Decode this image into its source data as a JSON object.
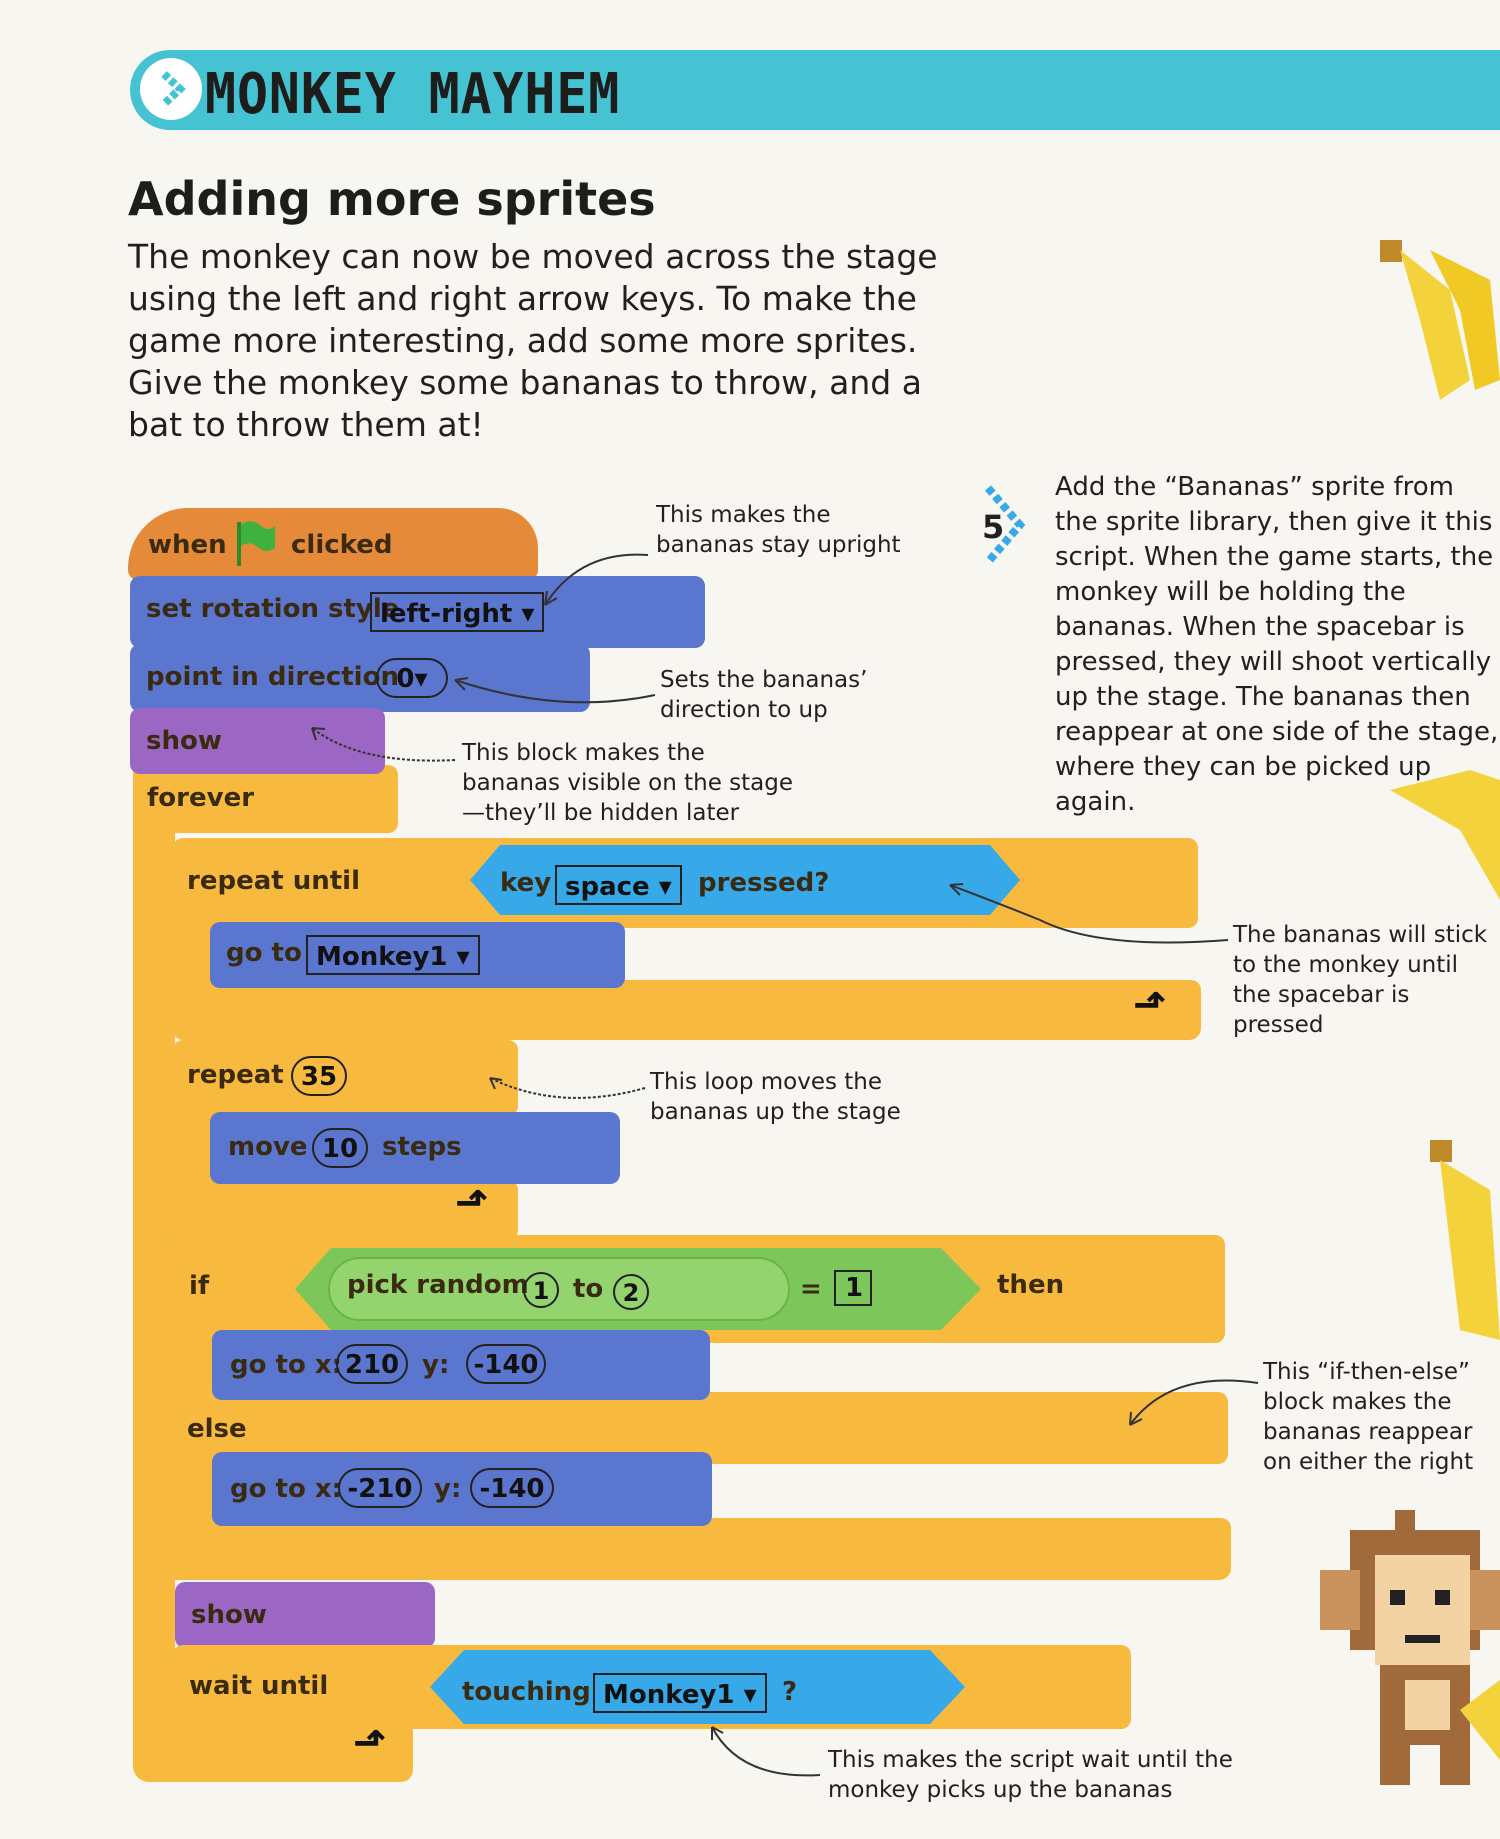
{
  "header": {
    "title": "MONKEY MAYHEM"
  },
  "section": {
    "subtitle": "Adding more sprites",
    "intro": "The monkey can now be moved across the stage using the left and right arrow keys. To make the game more interesting, add some more sprites. Give the monkey some bananas to throw, and a bat to throw them at!"
  },
  "step": {
    "number": "5",
    "text": "Add the “Bananas” sprite from the sprite library, then give it this script. When the game starts, the monkey will be holding the bananas. When the spacebar is pressed, they will shoot vertically up the stage. The bananas then reappear at one side of the stage, where they can be picked up again."
  },
  "script": {
    "when_flag": {
      "when": "when",
      "clicked": "clicked"
    },
    "set_rotation": {
      "label": "set rotation style",
      "value": "left-right"
    },
    "point_dir": {
      "label": "point in direction",
      "value": "0"
    },
    "show1": "show",
    "forever": "forever",
    "repeat_until": {
      "label": "repeat until",
      "key": "key",
      "key_value": "space",
      "pressed": "pressed?"
    },
    "goto_monkey": {
      "label": "go to",
      "value": "Monkey1"
    },
    "repeat": {
      "label": "repeat",
      "count": "35"
    },
    "move": {
      "label": "move",
      "value": "10",
      "steps": "steps"
    },
    "if_block": {
      "if": "if",
      "pick": "pick random",
      "from": "1",
      "to": "to",
      "to_value": "2",
      "eq": "=",
      "eq_value": "1",
      "then": "then"
    },
    "goto_xy1": {
      "label": "go to x:",
      "x": "210",
      "y_label": "y:",
      "y": "-140"
    },
    "else": "else",
    "goto_xy2": {
      "label": "go to x:",
      "x": "-210",
      "y_label": "y:",
      "y": "-140"
    },
    "show2": "show",
    "wait_until": {
      "label": "wait until",
      "touching": "touching",
      "value": "Monkey1",
      "q": "?"
    }
  },
  "annotations": {
    "upright": "This makes the bananas stay upright",
    "direction": "Sets the bananas’ direction to up",
    "visible": "This block makes the bananas visible on the stage—they’ll be hidden later",
    "stick": "The bananas will stick to the monkey until the spacebar is pressed",
    "loop": "This loop moves the bananas up the stage",
    "ifelse": "This “if-then-else” block makes the bananas reappear on either the right or left side of the stage, randomly",
    "wait": "This makes the script wait until the monkey picks up the bananas"
  },
  "colors": {
    "band": "#45c3d3",
    "events": "#e58a38",
    "motion": "#5b76cf",
    "looks": "#9b66c4",
    "control": "#f7ba3e",
    "operators": "#7dc65a",
    "sensing": "#37a8e8"
  }
}
